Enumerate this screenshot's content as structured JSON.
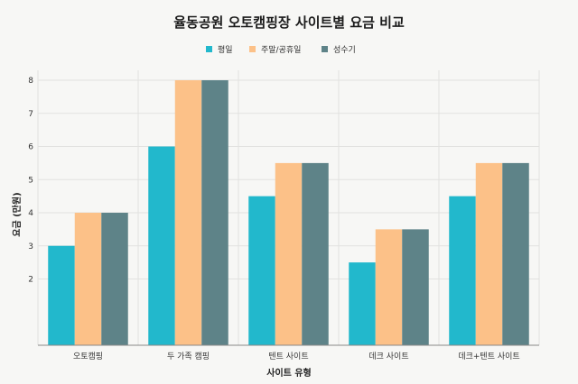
{
  "chart_data": {
    "type": "bar",
    "title": "율동공원 오토캠핑장 사이트별 요금 비교",
    "xlabel": "사이트 유형",
    "ylabel": "요금 (만원)",
    "categories": [
      "오토캠핑",
      "두 가족 캠핑",
      "텐트 사이트",
      "데크 사이트",
      "데크+텐트 사이트"
    ],
    "series": [
      {
        "name": "평일",
        "color": "#22b8cc",
        "values": [
          3,
          6,
          4.5,
          2.5,
          4.5
        ]
      },
      {
        "name": "주말/공휴일",
        "color": "#fcc188",
        "values": [
          4,
          8,
          5.5,
          3.5,
          5.5
        ]
      },
      {
        "name": "성수기",
        "color": "#5e8388",
        "values": [
          4,
          8,
          5.5,
          3.5,
          5.5
        ]
      }
    ],
    "yticks": [
      "2",
      "3",
      "4",
      "5",
      "6",
      "7",
      "8"
    ],
    "ylim": [
      0,
      8.3
    ],
    "legend_position": "top-center",
    "grid": true
  }
}
